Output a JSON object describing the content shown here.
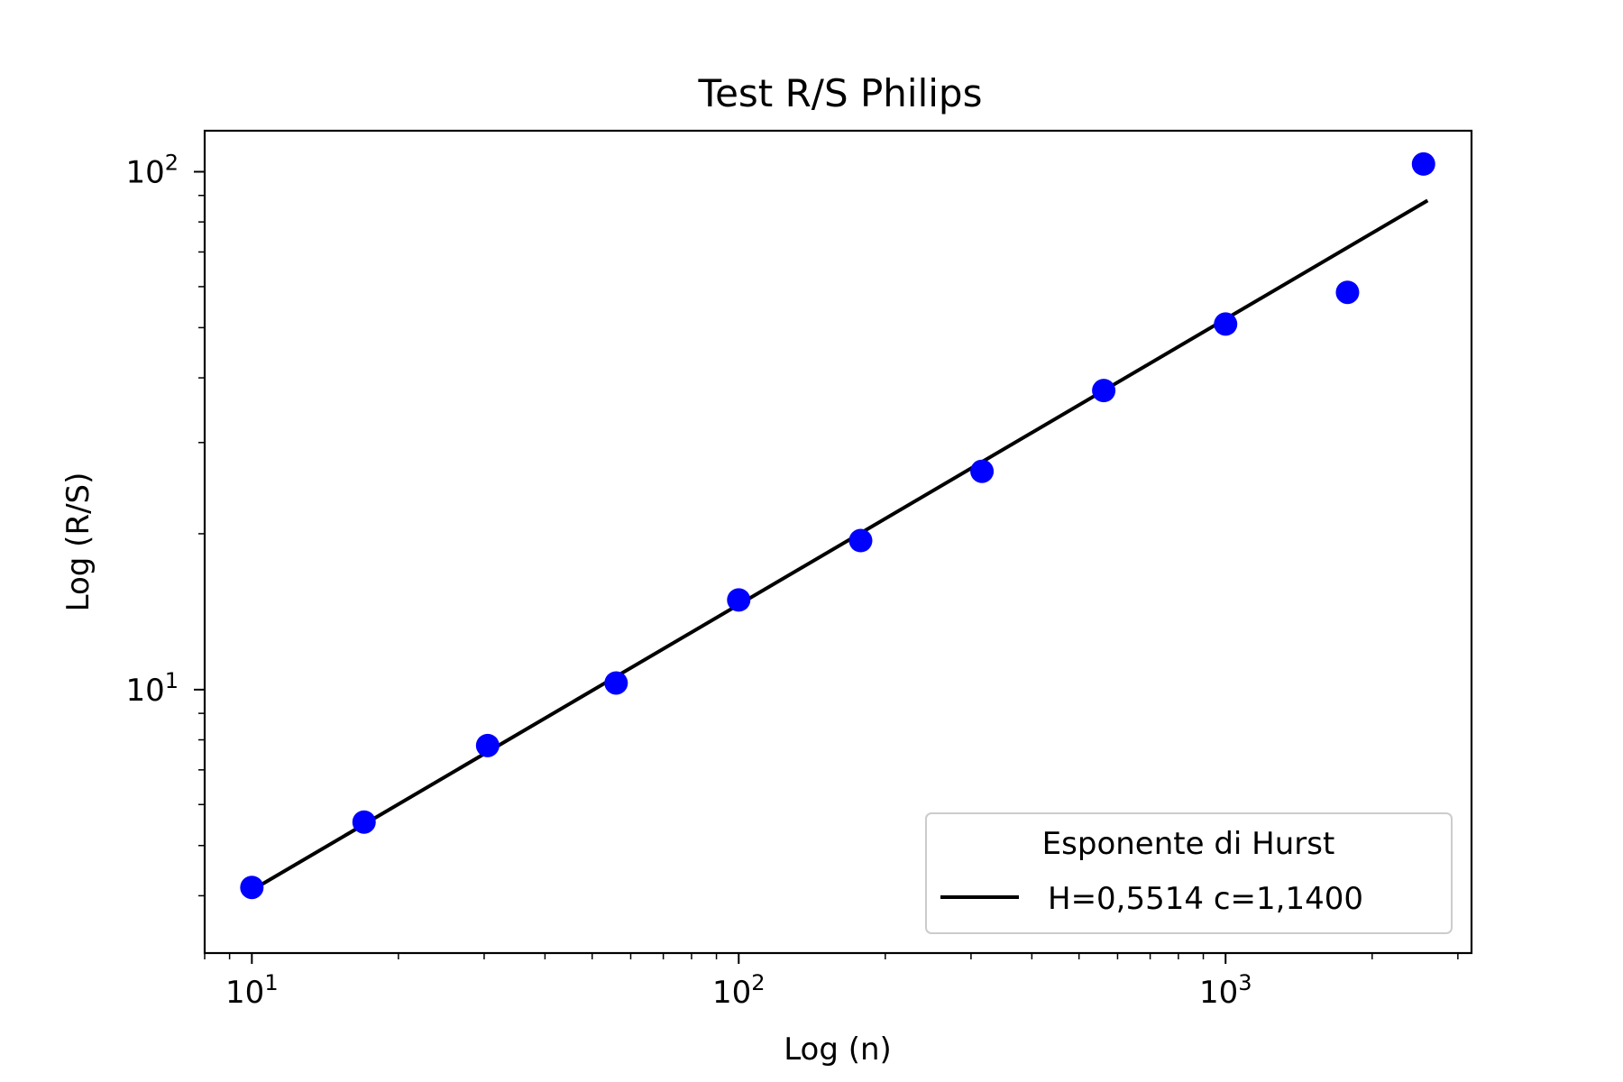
{
  "chart_data": {
    "type": "scatter",
    "title": "Test R/S Philips",
    "xlabel": "Log (n)",
    "ylabel": "Log (R/S)",
    "xscale": "log",
    "yscale": "log",
    "xlim": [
      8,
      3200
    ],
    "ylim": [
      3.1,
      120
    ],
    "x_ticks": [
      {
        "value": 10,
        "base": "10",
        "exp": "1"
      },
      {
        "value": 100,
        "base": "10",
        "exp": "2"
      },
      {
        "value": 1000,
        "base": "10",
        "exp": "3"
      }
    ],
    "y_ticks": [
      {
        "value": 10,
        "base": "10",
        "exp": "1"
      },
      {
        "value": 100,
        "base": "10",
        "exp": "2"
      }
    ],
    "grid": false,
    "points_color": "#0000ff",
    "line_color": "#000000",
    "points": [
      {
        "x": 10,
        "y": 4.15
      },
      {
        "x": 17,
        "y": 5.55
      },
      {
        "x": 30.5,
        "y": 7.8
      },
      {
        "x": 56,
        "y": 10.3
      },
      {
        "x": 100,
        "y": 14.9
      },
      {
        "x": 178,
        "y": 19.4
      },
      {
        "x": 316,
        "y": 26.4
      },
      {
        "x": 562,
        "y": 37.8
      },
      {
        "x": 1000,
        "y": 50.8
      },
      {
        "x": 1780,
        "y": 58.5
      },
      {
        "x": 2550,
        "y": 103.5
      }
    ],
    "fit_line": [
      {
        "x": 10,
        "y": 4.1
      },
      {
        "x": 2600,
        "y": 88
      }
    ],
    "legend": {
      "title": "Esponente di Hurst",
      "entries": [
        {
          "label": "H=0,5514 c=1,1400",
          "type": "line"
        }
      ],
      "position": "lower-right"
    }
  }
}
